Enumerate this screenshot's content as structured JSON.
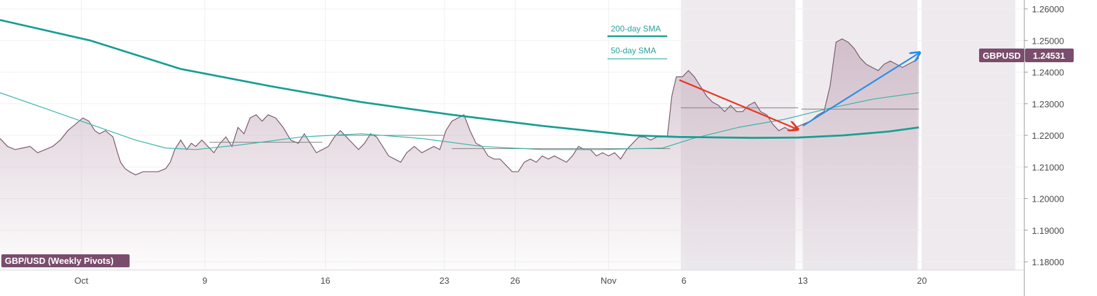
{
  "chart_data": {
    "type": "area",
    "title": "GBP/USD (Weekly Pivots)",
    "symbol_tag": "GBPUSD",
    "last_price_label": "1.24531",
    "last_price": 1.24531,
    "ylim": [
      1.175,
      1.2635
    ],
    "x_range": [
      0,
      68
    ],
    "y_ticks": [
      {
        "value": 1.26,
        "label": "1.26000"
      },
      {
        "value": 1.25,
        "label": "1.25000"
      },
      {
        "value": 1.24,
        "label": "1.24000"
      },
      {
        "value": 1.23,
        "label": "1.23000"
      },
      {
        "value": 1.22,
        "label": "1.22000"
      },
      {
        "value": 1.21,
        "label": "1.21000"
      },
      {
        "value": 1.2,
        "label": "1.20000"
      },
      {
        "value": 1.19,
        "label": "1.19000"
      },
      {
        "value": 1.18,
        "label": "1.18000"
      }
    ],
    "x_ticks": [
      {
        "x": 5.4,
        "label": "Oct"
      },
      {
        "x": 13.6,
        "label": "9"
      },
      {
        "x": 21.6,
        "label": "16"
      },
      {
        "x": 29.5,
        "label": "23"
      },
      {
        "x": 34.2,
        "label": "26"
      },
      {
        "x": 40.4,
        "label": "Nov"
      },
      {
        "x": 45.4,
        "label": "6"
      },
      {
        "x": 53.3,
        "label": "13"
      },
      {
        "x": 61.2,
        "label": "20"
      }
    ],
    "shaded_periods": [
      [
        45.2,
        52.8
      ],
      [
        53.3,
        60.9
      ],
      [
        61.2,
        67.4
      ]
    ],
    "price": [
      [
        0,
        1.219
      ],
      [
        0.5,
        1.2165
      ],
      [
        1,
        1.2155
      ],
      [
        1.5,
        1.216
      ],
      [
        2,
        1.2165
      ],
      [
        2.5,
        1.2145
      ],
      [
        3,
        1.2155
      ],
      [
        3.5,
        1.2165
      ],
      [
        4,
        1.2185
      ],
      [
        4.5,
        1.2215
      ],
      [
        5,
        1.2235
      ],
      [
        5.5,
        1.2255
      ],
      [
        5.9,
        1.2245
      ],
      [
        6.3,
        1.2215
      ],
      [
        6.6,
        1.2205
      ],
      [
        7,
        1.2215
      ],
      [
        7.5,
        1.2195
      ],
      [
        7.8,
        1.2145
      ],
      [
        8,
        1.2115
      ],
      [
        8.3,
        1.2095
      ],
      [
        8.6,
        1.2085
      ],
      [
        9,
        1.2075
      ],
      [
        9.5,
        1.2085
      ],
      [
        10,
        1.2085
      ],
      [
        10.5,
        1.2085
      ],
      [
        11,
        1.2095
      ],
      [
        11.3,
        1.2115
      ],
      [
        11.6,
        1.2155
      ],
      [
        12,
        1.2185
      ],
      [
        12.4,
        1.2155
      ],
      [
        12.7,
        1.2175
      ],
      [
        13,
        1.2165
      ],
      [
        13.4,
        1.2185
      ],
      [
        13.8,
        1.2165
      ],
      [
        14.2,
        1.2145
      ],
      [
        14.6,
        1.2175
      ],
      [
        15,
        1.2195
      ],
      [
        15.4,
        1.2165
      ],
      [
        15.8,
        1.2225
      ],
      [
        16.2,
        1.2205
      ],
      [
        16.6,
        1.2255
      ],
      [
        17,
        1.2265
      ],
      [
        17.4,
        1.2245
      ],
      [
        17.8,
        1.2265
      ],
      [
        18.3,
        1.2255
      ],
      [
        18.8,
        1.2225
      ],
      [
        19.3,
        1.2185
      ],
      [
        19.8,
        1.2175
      ],
      [
        20.2,
        1.2205
      ],
      [
        20.6,
        1.2175
      ],
      [
        21,
        1.2145
      ],
      [
        21.4,
        1.2155
      ],
      [
        21.8,
        1.2165
      ],
      [
        22.2,
        1.2195
      ],
      [
        22.6,
        1.2215
      ],
      [
        23,
        1.2195
      ],
      [
        23.4,
        1.2175
      ],
      [
        23.8,
        1.2155
      ],
      [
        24.2,
        1.2175
      ],
      [
        24.6,
        1.2205
      ],
      [
        25,
        1.2195
      ],
      [
        25.4,
        1.2165
      ],
      [
        25.8,
        1.2135
      ],
      [
        26.2,
        1.2125
      ],
      [
        26.6,
        1.2115
      ],
      [
        27,
        1.2145
      ],
      [
        27.5,
        1.2165
      ],
      [
        28,
        1.2145
      ],
      [
        28.4,
        1.2155
      ],
      [
        28.8,
        1.2165
      ],
      [
        29.2,
        1.2155
      ],
      [
        29.6,
        1.2215
      ],
      [
        30,
        1.2245
      ],
      [
        30.4,
        1.2255
      ],
      [
        30.8,
        1.2265
      ],
      [
        31.2,
        1.2215
      ],
      [
        31.6,
        1.2175
      ],
      [
        32,
        1.2165
      ],
      [
        32.4,
        1.2135
      ],
      [
        32.8,
        1.2125
      ],
      [
        33.2,
        1.2125
      ],
      [
        33.6,
        1.2105
      ],
      [
        34,
        1.2085
      ],
      [
        34.4,
        1.2085
      ],
      [
        34.8,
        1.2115
      ],
      [
        35.2,
        1.2125
      ],
      [
        35.6,
        1.2115
      ],
      [
        36,
        1.2135
      ],
      [
        36.4,
        1.2125
      ],
      [
        36.8,
        1.2135
      ],
      [
        37.2,
        1.2125
      ],
      [
        37.6,
        1.2115
      ],
      [
        38,
        1.2135
      ],
      [
        38.4,
        1.2165
      ],
      [
        38.8,
        1.2155
      ],
      [
        39.2,
        1.2155
      ],
      [
        39.6,
        1.2135
      ],
      [
        40,
        1.2145
      ],
      [
        40.4,
        1.2135
      ],
      [
        40.8,
        1.2145
      ],
      [
        41.2,
        1.2125
      ],
      [
        41.6,
        1.2155
      ],
      [
        42,
        1.2175
      ],
      [
        42.4,
        1.2195
      ],
      [
        42.8,
        1.2195
      ],
      [
        43.2,
        1.2185
      ],
      [
        43.6,
        1.2195
      ],
      [
        44,
        1.2195
      ],
      [
        44.3,
        1.2195
      ],
      [
        44.6,
        1.2325
      ],
      [
        44.9,
        1.2385
      ],
      [
        45.3,
        1.2385
      ],
      [
        45.7,
        1.2405
      ],
      [
        46.1,
        1.2385
      ],
      [
        46.5,
        1.2355
      ],
      [
        46.9,
        1.2325
      ],
      [
        47.3,
        1.2305
      ],
      [
        47.7,
        1.2295
      ],
      [
        48.1,
        1.2275
      ],
      [
        48.5,
        1.2295
      ],
      [
        48.9,
        1.2275
      ],
      [
        49.3,
        1.2275
      ],
      [
        49.7,
        1.2295
      ],
      [
        50.1,
        1.2305
      ],
      [
        50.5,
        1.2275
      ],
      [
        50.9,
        1.2265
      ],
      [
        51.3,
        1.2235
      ],
      [
        51.7,
        1.2215
      ],
      [
        52.1,
        1.2225
      ],
      [
        52.5,
        1.2215
      ],
      [
        52.8,
        1.2225
      ],
      [
        53.3,
        1.2235
      ],
      [
        53.8,
        1.2245
      ],
      [
        54.3,
        1.2265
      ],
      [
        54.7,
        1.2275
      ],
      [
        55.1,
        1.2355
      ],
      [
        55.5,
        1.2495
      ],
      [
        55.9,
        1.2505
      ],
      [
        56.3,
        1.2495
      ],
      [
        56.7,
        1.2475
      ],
      [
        57.1,
        1.2445
      ],
      [
        57.5,
        1.2425
      ],
      [
        57.9,
        1.2415
      ],
      [
        58.3,
        1.2405
      ],
      [
        58.7,
        1.2425
      ],
      [
        59.1,
        1.2435
      ],
      [
        59.5,
        1.2425
      ],
      [
        59.9,
        1.2415
      ],
      [
        60.3,
        1.2425
      ],
      [
        60.7,
        1.2435
      ],
      [
        61.0,
        1.2445
      ]
    ],
    "sma200": {
      "name": "200-day SMA",
      "color": "#1a9e94",
      "points": [
        [
          0,
          1.2565
        ],
        [
          6,
          1.25
        ],
        [
          12,
          1.241
        ],
        [
          18,
          1.2355
        ],
        [
          24,
          1.2305
        ],
        [
          30,
          1.2265
        ],
        [
          36,
          1.223
        ],
        [
          42,
          1.22
        ],
        [
          45,
          1.2195
        ],
        [
          50,
          1.2192
        ],
        [
          53,
          1.2193
        ],
        [
          56,
          1.22
        ],
        [
          59,
          1.2212
        ],
        [
          61,
          1.2225
        ]
      ]
    },
    "sma50": {
      "name": "50-day SMA",
      "color": "#3ab3a9",
      "points": [
        [
          0,
          1.2335
        ],
        [
          3,
          1.2285
        ],
        [
          6,
          1.2235
        ],
        [
          9,
          1.2185
        ],
        [
          11,
          1.216
        ],
        [
          13,
          1.2155
        ],
        [
          16,
          1.217
        ],
        [
          20,
          1.2195
        ],
        [
          24,
          1.2205
        ],
        [
          28,
          1.219
        ],
        [
          32,
          1.2165
        ],
        [
          36,
          1.2155
        ],
        [
          40,
          1.2155
        ],
        [
          44,
          1.216
        ],
        [
          46,
          1.219
        ],
        [
          49,
          1.2225
        ],
        [
          52,
          1.225
        ],
        [
          55,
          1.2285
        ],
        [
          58,
          1.2315
        ],
        [
          61,
          1.2335
        ]
      ]
    },
    "pivot_lines": [
      {
        "x0": 13.9,
        "x1": 21.4,
        "y": 1.2178
      },
      {
        "x0": 22.4,
        "x1": 29.5,
        "y": 1.22
      },
      {
        "x0": 30.0,
        "x1": 44.5,
        "y": 1.2158
      },
      {
        "x0": 45.2,
        "x1": 53.0,
        "y": 1.2287
      },
      {
        "x0": 53.2,
        "x1": 61.0,
        "y": 1.2283
      }
    ],
    "annotations": [
      {
        "type": "arrow",
        "color": "#e8341c",
        "from": [
          45.1,
          1.2375
        ],
        "to": [
          52.9,
          1.222
        ]
      },
      {
        "type": "arrow",
        "color": "#2a8de6",
        "from": [
          53.3,
          1.223
        ],
        "to": [
          61.0,
          1.246
        ]
      }
    ],
    "colors": {
      "price_line": "#7a5a6e",
      "area_fill": "#c8b1c0",
      "tag_bg": "#7a4d6c",
      "shade": "#eeeaee"
    }
  }
}
